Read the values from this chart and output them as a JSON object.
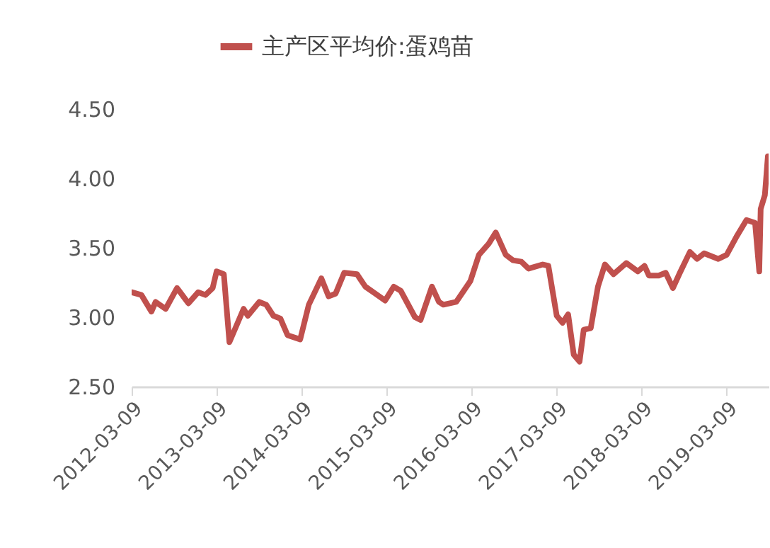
{
  "chart_data": {
    "type": "line",
    "legend": "top",
    "grid": false,
    "x": [
      "2012-03-09",
      "2012-04-20",
      "2012-06-02",
      "2012-06-20",
      "2012-08-02",
      "2012-09-20",
      "2012-11-08",
      "2012-12-20",
      "2013-01-20",
      "2013-02-20",
      "2013-03-09",
      "2013-04-09",
      "2013-05-03",
      "2013-07-03",
      "2013-07-21",
      "2013-09-08",
      "2013-10-08",
      "2013-11-08",
      "2013-12-08",
      "2014-01-08",
      "2014-03-03",
      "2014-04-09",
      "2014-06-02",
      "2014-07-03",
      "2014-08-02",
      "2014-09-08",
      "2014-11-02",
      "2014-12-08",
      "2015-01-20",
      "2015-03-03",
      "2015-04-09",
      "2015-05-09",
      "2015-07-09",
      "2015-08-02",
      "2015-09-20",
      "2015-10-20",
      "2015-11-08",
      "2016-01-02",
      "2016-03-03",
      "2016-04-09",
      "2016-05-21",
      "2016-06-20",
      "2016-08-02",
      "2016-09-02",
      "2016-10-08",
      "2016-11-08",
      "2017-01-08",
      "2017-02-01",
      "2017-03-09",
      "2017-04-03",
      "2017-04-27",
      "2017-05-21",
      "2017-06-15",
      "2017-07-03",
      "2017-08-02",
      "2017-09-02",
      "2017-10-02",
      "2017-11-08",
      "2018-01-02",
      "2018-02-20",
      "2018-03-21",
      "2018-04-09",
      "2018-05-21",
      "2018-06-20",
      "2018-07-21",
      "2018-08-20",
      "2018-10-02",
      "2018-11-02",
      "2018-12-02",
      "2019-02-01",
      "2019-03-09",
      "2019-04-20",
      "2019-06-02",
      "2019-07-09",
      "2019-07-27",
      "2019-08-02",
      "2019-08-20",
      "2019-09-02"
    ],
    "series": [
      {
        "name": "主产区平均价:蛋鸡苗",
        "color": "#c0504d",
        "values": [
          3.18,
          3.16,
          3.04,
          3.11,
          3.06,
          3.21,
          3.1,
          3.18,
          3.16,
          3.21,
          3.33,
          3.31,
          2.82,
          3.06,
          3.01,
          3.11,
          3.09,
          3.01,
          2.99,
          2.87,
          2.84,
          3.09,
          3.28,
          3.15,
          3.17,
          3.32,
          3.31,
          3.22,
          3.17,
          3.12,
          3.22,
          3.19,
          3.0,
          2.98,
          3.22,
          3.11,
          3.09,
          3.11,
          3.26,
          3.45,
          3.53,
          3.61,
          3.45,
          3.41,
          3.4,
          3.35,
          3.38,
          3.37,
          3.01,
          2.96,
          3.02,
          2.73,
          2.68,
          2.91,
          2.92,
          3.22,
          3.38,
          3.31,
          3.39,
          3.33,
          3.37,
          3.3,
          3.3,
          3.32,
          3.21,
          3.32,
          3.47,
          3.42,
          3.46,
          3.42,
          3.45,
          3.58,
          3.7,
          3.68,
          3.33,
          3.78,
          3.88,
          4.16
        ]
      }
    ],
    "xlim": [
      "2012-03-09",
      "2019-09-05"
    ],
    "xticks": [
      "2012-03-09",
      "2013-03-09",
      "2014-03-09",
      "2015-03-09",
      "2016-03-09",
      "2017-03-09",
      "2018-03-09",
      "2019-03-09"
    ],
    "ylim": [
      2.5,
      4.5
    ],
    "yticks": [
      {
        "value": 2.5,
        "label": "2.50"
      },
      {
        "value": 3,
        "label": "3.00"
      },
      {
        "value": 3.5,
        "label": "3.50"
      },
      {
        "value": 4,
        "label": "4.00"
      },
      {
        "value": 4.5,
        "label": "4.50"
      }
    ]
  }
}
